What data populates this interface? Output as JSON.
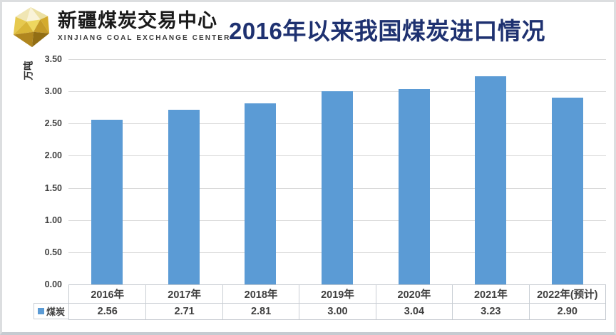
{
  "logo": {
    "name_cn": "新疆煤炭交易中心",
    "name_en": "XINJIANG COAL EXCHANGE CENTER",
    "brand_gold": "#D9B32A"
  },
  "title": "2016年以来我国煤炭进口情况",
  "chart_data": {
    "type": "bar",
    "title": "2016年以来我国煤炭进口情况",
    "unit_label": "万吨",
    "categories": [
      "2016年",
      "2017年",
      "2018年",
      "2019年",
      "2020年",
      "2021年",
      "2022年(预计)"
    ],
    "series": [
      {
        "name": "煤炭",
        "values": [
          2.56,
          2.71,
          2.81,
          3.0,
          3.04,
          3.23,
          2.9
        ]
      }
    ],
    "value_labels": [
      "2.56",
      "2.71",
      "2.81",
      "3.00",
      "3.04",
      "3.23",
      "2.90"
    ],
    "y_ticks": [
      "3.50",
      "3.00",
      "2.50",
      "2.00",
      "1.50",
      "1.00",
      "0.50",
      "0.00"
    ],
    "ylim": [
      0,
      3.5
    ],
    "grid": true,
    "legend_position": "bottom-left",
    "bar_color": "#5B9BD5",
    "grid_color": "#D9D9D9",
    "title_color": "#1E3170",
    "text_color": "#404040"
  }
}
